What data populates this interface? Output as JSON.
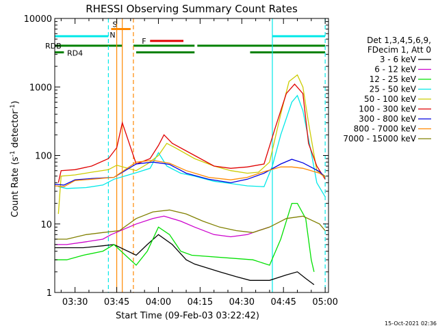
{
  "page": {
    "footer_stamp": "15-Oct-2021 02:36"
  },
  "chart_data": {
    "type": "line",
    "title": "RHESSI Observing Summary Count Rates",
    "xlabel": "Start Time (09-Feb-03 03:22:42)",
    "ylabel": "Count Rate (s",
    "ylabel_sup1": "-1",
    "ylabel_mid": " detector",
    "ylabel_sup2": "-1",
    "ylabel_end": ")",
    "y_scale": "log",
    "ylim": [
      1,
      10000
    ],
    "xlim": [
      "03:22:42",
      "05:01:12"
    ],
    "x_ticks": [
      "03:30",
      "03:45",
      "04:00",
      "04:15",
      "04:30",
      "04:45",
      "05:00"
    ],
    "y_ticks": [
      "1",
      "10",
      "100",
      "1000",
      "10000"
    ],
    "legend_header": [
      "Det 1,3,4,5,6,9,",
      "FDecim 1, Att 0"
    ],
    "legend_placement": "right",
    "series": [
      {
        "name": "3 - 6 keV",
        "color": "#000000",
        "points": [
          [
            "03:22",
            "4.5"
          ],
          [
            "03:27",
            "4.5"
          ],
          [
            "03:33",
            "4.5"
          ],
          [
            "03:40",
            "4.8"
          ],
          [
            "03:44",
            "5"
          ],
          [
            "03:52",
            "3.5"
          ],
          [
            "03:56",
            "5"
          ],
          [
            "04:00",
            "7"
          ],
          [
            "04:05",
            "5"
          ],
          [
            "04:10",
            "3"
          ],
          [
            "04:13",
            "2.6"
          ],
          [
            "04:22",
            "2"
          ],
          [
            "04:28",
            "1.7"
          ],
          [
            "04:33",
            "1.5"
          ],
          [
            "04:40",
            "1.5"
          ],
          [
            "04:46",
            "1.8"
          ],
          [
            "04:50",
            "2"
          ],
          [
            "04:53",
            "1.6"
          ],
          [
            "04:56",
            "1.3"
          ]
        ]
      },
      {
        "name": "6 - 12 keV",
        "color": "#cc00cc",
        "points": [
          [
            "03:22",
            "5"
          ],
          [
            "03:27",
            "5"
          ],
          [
            "03:34",
            "5.5"
          ],
          [
            "03:40",
            "6"
          ],
          [
            "03:43",
            "7"
          ],
          [
            "03:52",
            "10"
          ],
          [
            "03:58",
            "12"
          ],
          [
            "04:02",
            "13"
          ],
          [
            "04:08",
            "11"
          ],
          [
            "04:13",
            "9"
          ],
          [
            "04:20",
            "7"
          ],
          [
            "04:26",
            "6.5"
          ],
          [
            "04:32",
            "7"
          ],
          [
            "04:36",
            "8"
          ],
          [
            "04:40",
            "9"
          ]
        ]
      },
      {
        "name": "12 - 25 keV",
        "color": "#00e000",
        "points": [
          [
            "03:22",
            "3"
          ],
          [
            "03:27",
            "3"
          ],
          [
            "03:33",
            "3.5"
          ],
          [
            "03:40",
            "4"
          ],
          [
            "03:44",
            "5"
          ],
          [
            "03:52",
            "2.5"
          ],
          [
            "03:56",
            "4"
          ],
          [
            "04:00",
            "9"
          ],
          [
            "04:04",
            "7"
          ],
          [
            "04:08",
            "4"
          ],
          [
            "04:12",
            "3.5"
          ],
          [
            "04:34",
            "3"
          ],
          [
            "04:40",
            "2.5"
          ],
          [
            "04:44",
            "6"
          ],
          [
            "04:48",
            "20"
          ],
          [
            "04:50",
            "20"
          ],
          [
            "04:53",
            "12"
          ],
          [
            "04:55",
            "3"
          ],
          [
            "04:56",
            "2"
          ]
        ]
      },
      {
        "name": "25 - 50 keV",
        "color": "#00e8e8",
        "points": [
          [
            "03:24",
            "35"
          ],
          [
            "03:27",
            "33"
          ],
          [
            "03:34",
            "34"
          ],
          [
            "03:40",
            "37"
          ],
          [
            "03:44",
            "45"
          ],
          [
            "03:52",
            "56"
          ],
          [
            "03:57",
            "65"
          ],
          [
            "04:00",
            "110"
          ],
          [
            "04:03",
            "70"
          ],
          [
            "04:08",
            "55"
          ],
          [
            "04:13",
            "50"
          ],
          [
            "04:20",
            "42"
          ],
          [
            "04:26",
            "39"
          ],
          [
            "04:32",
            "36"
          ],
          [
            "04:38",
            "35"
          ],
          [
            "04:41",
            "70"
          ],
          [
            "04:44",
            "200"
          ],
          [
            "04:48",
            "600"
          ],
          [
            "04:50",
            "750"
          ],
          [
            "04:52",
            "450"
          ],
          [
            "04:55",
            "110"
          ],
          [
            "04:57",
            "40"
          ],
          [
            "05:00",
            "25"
          ]
        ]
      },
      {
        "name": "50 - 100 keV",
        "color": "#cccc00",
        "points": [
          [
            "03:24",
            "14"
          ],
          [
            "03:25",
            "50"
          ],
          [
            "03:30",
            "52"
          ],
          [
            "03:36",
            "57"
          ],
          [
            "03:42",
            "62"
          ],
          [
            "03:45",
            "72"
          ],
          [
            "03:52",
            "60"
          ],
          [
            "03:56",
            "75"
          ],
          [
            "04:00",
            "100"
          ],
          [
            "04:03",
            "150"
          ],
          [
            "04:06",
            "130"
          ],
          [
            "04:13",
            "90"
          ],
          [
            "04:20",
            "70"
          ],
          [
            "04:26",
            "60"
          ],
          [
            "04:32",
            "55"
          ],
          [
            "04:36",
            "57"
          ],
          [
            "04:40",
            "80"
          ],
          [
            "04:44",
            "400"
          ],
          [
            "04:47",
            "1200"
          ],
          [
            "04:50",
            "1500"
          ],
          [
            "04:52",
            "1000"
          ],
          [
            "04:54",
            "300"
          ],
          [
            "04:57",
            "60"
          ],
          [
            "05:00",
            "50"
          ]
        ]
      },
      {
        "name": "100 - 300 keV",
        "color": "#e00000",
        "points": [
          [
            "03:24",
            "40"
          ],
          [
            "03:25",
            "60"
          ],
          [
            "03:30",
            "62"
          ],
          [
            "03:36",
            "70"
          ],
          [
            "03:42",
            "90"
          ],
          [
            "03:45",
            "130"
          ],
          [
            "03:47",
            "300"
          ],
          [
            "03:52",
            "75"
          ],
          [
            "03:57",
            "90"
          ],
          [
            "04:00",
            "140"
          ],
          [
            "04:02",
            "200"
          ],
          [
            "04:05",
            "150"
          ],
          [
            "04:13",
            "100"
          ],
          [
            "04:20",
            "70"
          ],
          [
            "04:26",
            "65"
          ],
          [
            "04:32",
            "68"
          ],
          [
            "04:38",
            "75"
          ],
          [
            "04:42",
            "250"
          ],
          [
            "04:46",
            "800"
          ],
          [
            "04:49",
            "1100"
          ],
          [
            "04:52",
            "800"
          ],
          [
            "04:54",
            "150"
          ],
          [
            "04:57",
            "70"
          ],
          [
            "05:00",
            "45"
          ]
        ]
      },
      {
        "name": "300 - 800 keV",
        "color": "#0000e0",
        "points": [
          [
            "03:22",
            "38"
          ],
          [
            "03:26",
            "37"
          ],
          [
            "03:30",
            "44"
          ],
          [
            "03:36",
            "46"
          ],
          [
            "03:44",
            "48"
          ],
          [
            "03:52",
            "75"
          ],
          [
            "03:58",
            "80"
          ],
          [
            "04:04",
            "74"
          ],
          [
            "04:10",
            "55"
          ],
          [
            "04:18",
            "45"
          ],
          [
            "04:26",
            "40"
          ],
          [
            "04:32",
            "45"
          ],
          [
            "04:38",
            "55"
          ],
          [
            "04:44",
            "75"
          ],
          [
            "04:48",
            "88"
          ],
          [
            "04:52",
            "78"
          ],
          [
            "04:58",
            "58"
          ],
          [
            "05:00",
            "48"
          ]
        ]
      },
      {
        "name": "800 - 7000 keV",
        "color": "#ff8800",
        "points": [
          [
            "03:22",
            "36"
          ],
          [
            "03:26",
            "35"
          ],
          [
            "03:30",
            "43"
          ],
          [
            "03:36",
            "45"
          ],
          [
            "03:44",
            "48"
          ],
          [
            "03:52",
            "80"
          ],
          [
            "03:58",
            "85"
          ],
          [
            "04:04",
            "77"
          ],
          [
            "04:10",
            "60"
          ],
          [
            "04:18",
            "48"
          ],
          [
            "04:26",
            "44"
          ],
          [
            "04:32",
            "48"
          ],
          [
            "04:38",
            "58"
          ],
          [
            "04:44",
            "68"
          ],
          [
            "04:48",
            "68"
          ],
          [
            "04:52",
            "65"
          ],
          [
            "04:58",
            "55"
          ],
          [
            "05:00",
            "48"
          ]
        ]
      },
      {
        "name": "7000 - 15000 keV",
        "color": "#808000",
        "points": [
          [
            "03:22",
            "6"
          ],
          [
            "03:27",
            "6"
          ],
          [
            "03:34",
            "7"
          ],
          [
            "03:40",
            "7.5"
          ],
          [
            "03:46",
            "8"
          ],
          [
            "03:52",
            "12"
          ],
          [
            "03:58",
            "15"
          ],
          [
            "04:04",
            "16"
          ],
          [
            "04:10",
            "14"
          ],
          [
            "04:16",
            "11"
          ],
          [
            "04:22",
            "9"
          ],
          [
            "04:28",
            "8"
          ],
          [
            "04:34",
            "7.5"
          ],
          [
            "04:40",
            "9"
          ],
          [
            "04:46",
            "12"
          ],
          [
            "04:52",
            "13"
          ],
          [
            "04:58",
            "10"
          ],
          [
            "05:00",
            "8"
          ]
        ]
      }
    ],
    "flags": [
      {
        "label": "N",
        "color": "#00e8e8",
        "y": "5500",
        "from": "03:22:42",
        "to": "03:42",
        "label_at": "03:42"
      },
      {
        "label": "S",
        "color": "#ff8800",
        "y": "7000",
        "from": "03:43",
        "to": "03:50",
        "label_at": "03:43"
      },
      {
        "label": "F",
        "color": "#e00000",
        "y": "4700",
        "from": "03:57",
        "to": "04:09"
      },
      {
        "label": "",
        "color": "#00e8e8",
        "y": "5500",
        "from": "04:41",
        "to": "05:00"
      },
      {
        "label": "RDB",
        "color": "#008000",
        "y": "4000",
        "segments": [
          [
            "03:22:42",
            "03:47"
          ],
          [
            "03:51",
            "04:13"
          ],
          [
            "04:14",
            "05:00"
          ]
        ]
      },
      {
        "label": "RD4",
        "color": "#008000",
        "y": "3200",
        "segments": [
          [
            "03:22:42",
            "03:26"
          ],
          [
            "03:52",
            "04:13"
          ],
          [
            "04:33",
            "05:00"
          ]
        ]
      }
    ],
    "vlines": [
      {
        "at": "03:42",
        "color": "#00e8e8",
        "style": "dashed"
      },
      {
        "at": "03:45",
        "color": "#ff8800",
        "style": "solid"
      },
      {
        "at": "03:47",
        "color": "#ff8800",
        "style": "solid"
      },
      {
        "at": "03:51",
        "color": "#ff8800",
        "style": "dashed"
      },
      {
        "at": "04:41",
        "color": "#00e8e8",
        "style": "solid"
      },
      {
        "at": "05:00",
        "color": "#00e8e8",
        "style": "dashed"
      }
    ]
  }
}
